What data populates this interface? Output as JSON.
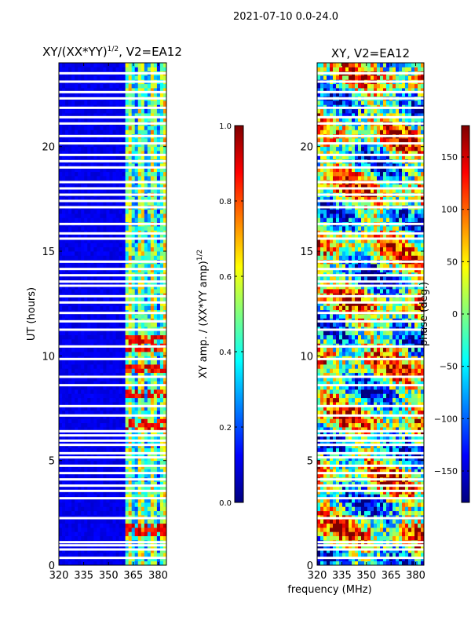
{
  "figure": {
    "suptitle": "2021-07-10 0.0-24.0",
    "xlabel": "frequency (MHz)"
  },
  "colors": {
    "jet": [
      "#00007f",
      "#0000ff",
      "#007fff",
      "#00ffff",
      "#7fff7f",
      "#ffff00",
      "#ff7f00",
      "#ff0000",
      "#7f0000"
    ]
  },
  "chart_data": [
    {
      "type": "heatmap",
      "id": "amplitude",
      "title_prefix": "XY/(XX*YY)",
      "title_exp": "1/2",
      "title_suffix": ", V2=EA12",
      "xlabel": "",
      "ylabel": "UT (hours)",
      "xlim": [
        320,
        385
      ],
      "ylim": [
        0,
        24
      ],
      "xticks": [
        320,
        335,
        350,
        365,
        380
      ],
      "yticks": [
        0,
        5,
        10,
        15,
        20
      ],
      "colorbar": {
        "label_prefix": "XY amp. / (XX*YY amp)",
        "label_exp": "1/2",
        "range": [
          0.0,
          1.0
        ],
        "ticks": [
          0.0,
          0.2,
          0.4,
          0.6,
          0.8,
          1.0
        ],
        "tick_labels": [
          "0.0",
          "0.2",
          "0.4",
          "0.6",
          "0.8",
          "1.0"
        ]
      },
      "description_values": {
        "low_band_MHz": [
          320,
          361
        ],
        "low_band_level": 0.08,
        "high_band_MHz": [
          361,
          385
        ],
        "high_band_level": 0.45,
        "bright_hours": [
          [
            1.5,
            2.0
          ],
          [
            6.5,
            6.9
          ],
          [
            8.0,
            8.4
          ],
          [
            9.2,
            9.6
          ],
          [
            10.2,
            11.0
          ]
        ],
        "bright_level": 0.95
      }
    },
    {
      "type": "heatmap",
      "id": "phase",
      "title": "XY, V2=EA12",
      "xlabel": "frequency (MHz)",
      "ylabel": "",
      "xlim": [
        320,
        385
      ],
      "ylim": [
        0,
        24
      ],
      "xticks": [
        320,
        335,
        350,
        365,
        380
      ],
      "yticks": [
        0,
        5,
        10,
        15,
        20
      ],
      "colorbar": {
        "label": "phase (deg.)",
        "range": [
          -180,
          180
        ],
        "ticks": [
          -150,
          -100,
          -50,
          0,
          50,
          100,
          150
        ],
        "tick_labels": [
          "−150",
          "−100",
          "−50",
          "0",
          "50",
          "100",
          "150"
        ]
      }
    }
  ],
  "blank_rows_hours": [
    0.35,
    0.75,
    0.95,
    1.1,
    2.25,
    3.2,
    3.55,
    3.8,
    4.1,
    4.4,
    4.75,
    5.15,
    5.35,
    5.75,
    5.95,
    6.2,
    6.4,
    7.15,
    7.6,
    8.6,
    9.0,
    9.85,
    10.45,
    11.25,
    11.65,
    12.05,
    12.55,
    12.85,
    13.35,
    13.55,
    13.85,
    14.15,
    14.5,
    15.6,
    15.85,
    16.3,
    17.1,
    17.4,
    17.7,
    18.0,
    18.3,
    19.0,
    19.3,
    19.6,
    20.15,
    20.5,
    21.1,
    21.4,
    21.85,
    22.3,
    22.6,
    23.1,
    23.5
  ]
}
